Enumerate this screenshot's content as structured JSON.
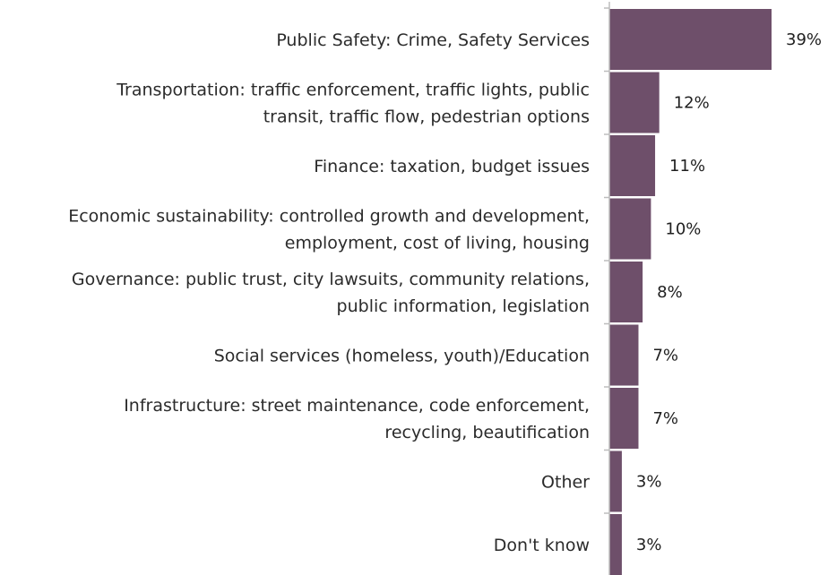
{
  "colors": {
    "bar": "#6e4f6a",
    "axis": "#bdbdbd",
    "text": "#2b2b2b"
  },
  "chart_data": {
    "type": "bar",
    "orientation": "horizontal",
    "categories": [
      [
        "Public Safety: Crime, Safety Services"
      ],
      [
        "Transportation: traffic enforcement, traffic lights, public",
        "transit, traffic flow, pedestrian options"
      ],
      [
        "Finance: taxation, budget issues"
      ],
      [
        "Economic sustainability: controlled growth and development,",
        "employment, cost of living, housing"
      ],
      [
        "Governance: public trust, city lawsuits, community relations,",
        "public information, legislation"
      ],
      [
        "Social services (homeless, youth)/Education"
      ],
      [
        "Infrastructure: street maintenance, code enforcement,",
        "recycling, beautification"
      ],
      [
        "Other"
      ],
      [
        "Don't know"
      ]
    ],
    "values": [
      39,
      12,
      11,
      10,
      8,
      7,
      7,
      3,
      3
    ],
    "value_labels": [
      "39%",
      "12%",
      "11%",
      "10%",
      "8%",
      "7%",
      "7%",
      "3%",
      "3%"
    ],
    "xlim": [
      0,
      39
    ],
    "grid": false,
    "legend": "none"
  }
}
